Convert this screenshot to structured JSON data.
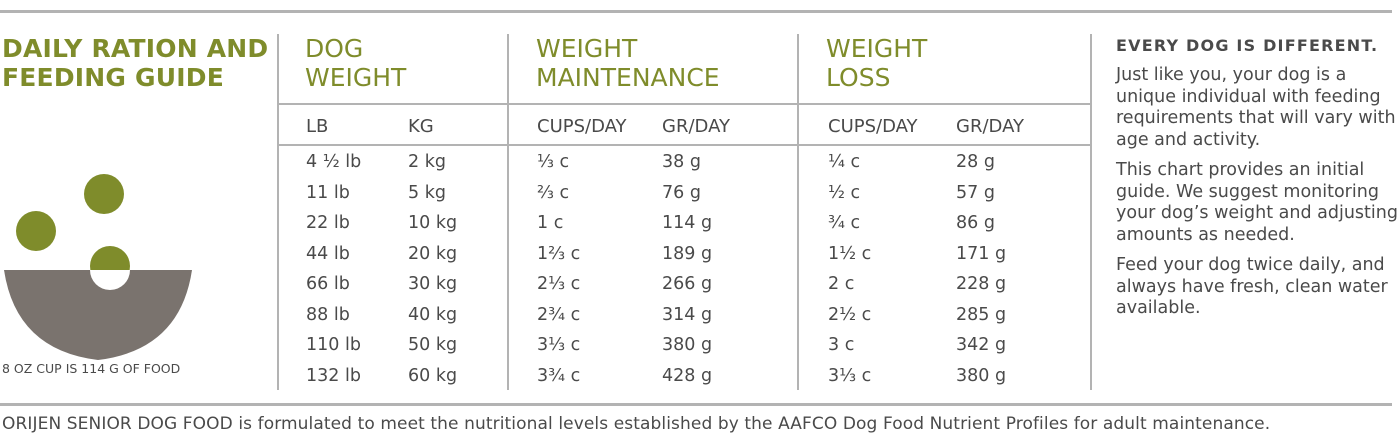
{
  "title": {
    "line1": "DAILY RATION AND",
    "line2": "FEEDING GUIDE"
  },
  "cup_note": "8 OZ CUP IS 114 G OF FOOD",
  "columns": {
    "dog_weight": {
      "line1": "DOG",
      "line2": "WEIGHT",
      "sub1": "LB",
      "sub2": "KG"
    },
    "maintenance": {
      "line1": "WEIGHT",
      "line2": "MAINTENANCE",
      "sub1": "CUPS/DAY",
      "sub2": "GR/DAY"
    },
    "loss": {
      "line1": "WEIGHT",
      "line2": "LOSS",
      "sub1": "CUPS/DAY",
      "sub2": "GR/DAY"
    }
  },
  "rows": [
    {
      "lb": "4 ½ lb",
      "kg": "2 kg",
      "m_cups": "⅓ c",
      "m_gr": "38 g",
      "l_cups": "¼ c",
      "l_gr": "28 g"
    },
    {
      "lb": "11 lb",
      "kg": "5 kg",
      "m_cups": "⅔ c",
      "m_gr": "76 g",
      "l_cups": "½ c",
      "l_gr": "57 g"
    },
    {
      "lb": "22 lb",
      "kg": "10 kg",
      "m_cups": "1 c",
      "m_gr": "114 g",
      "l_cups": "¾ c",
      "l_gr": "86 g"
    },
    {
      "lb": "44 lb",
      "kg": "20 kg",
      "m_cups": "1⅔ c",
      "m_gr": "189 g",
      "l_cups": "1½ c",
      "l_gr": "171 g"
    },
    {
      "lb": "66 lb",
      "kg": "30 kg",
      "m_cups": "2⅓ c",
      "m_gr": "266 g",
      "l_cups": "2 c",
      "l_gr": "228 g"
    },
    {
      "lb": "88 lb",
      "kg": "40 kg",
      "m_cups": "2¾ c",
      "m_gr": "314 g",
      "l_cups": "2½ c",
      "l_gr": "285 g"
    },
    {
      "lb": "110 lb",
      "kg": "50 kg",
      "m_cups": "3⅓ c",
      "m_gr": "380 g",
      "l_cups": "3 c",
      "l_gr": "342 g"
    },
    {
      "lb": "132 lb",
      "kg": "60 kg",
      "m_cups": "3¾ c",
      "m_gr": "428 g",
      "l_cups": "3⅓ c",
      "l_gr": "380 g"
    }
  ],
  "sidebar": {
    "heading": "EVERY DOG IS DIFFERENT.",
    "p1": "Just like you, your dog is a unique individual with feeding requirements that will vary with age and activity.",
    "p2": "This chart provides an initial guide. We suggest monitoring your dog’s weight and adjusting amounts as needed.",
    "p3": "Feed your dog twice daily, and always have fresh, clean water available."
  },
  "footer": "ORIJEN SENIOR DOG FOOD is formulated to meet the nutritional levels established by the AAFCO Dog Food Nutrient Profiles for adult maintenance.",
  "colors": {
    "accent": "#7f8c2b",
    "bowl": "#7a736e",
    "text": "#4a4a4a",
    "rule": "#b3b3b3"
  }
}
